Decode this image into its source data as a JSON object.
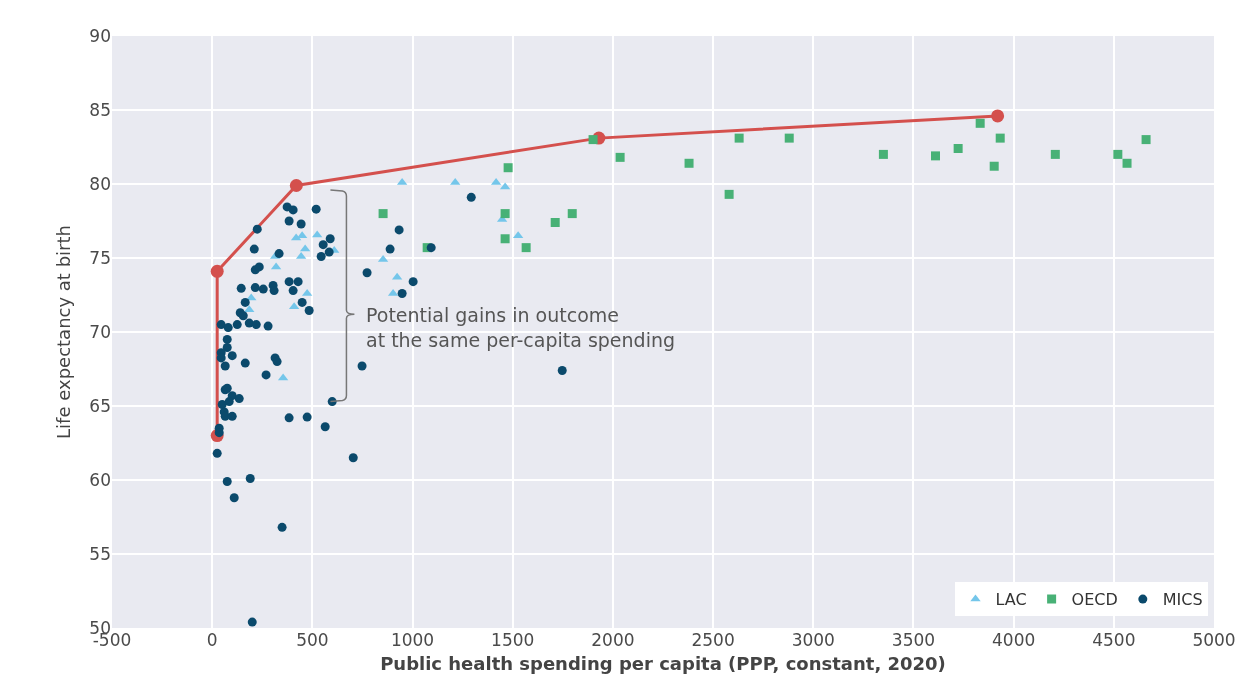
{
  "chart_data": {
    "type": "scatter",
    "xlabel": "Public health spending per capita (PPP, constant, 2020)",
    "ylabel": "Life expectancy at birth",
    "xlim": [
      -500,
      5000
    ],
    "xticks": [
      -500,
      0,
      500,
      1000,
      1500,
      2000,
      2500,
      3000,
      3500,
      4000,
      4500,
      5000
    ],
    "ylim": [
      50,
      90
    ],
    "yticks": [
      50,
      55,
      60,
      65,
      70,
      75,
      80,
      85,
      90
    ],
    "grid": true,
    "legend": "bottom right",
    "annotations": [
      "Potential gains in outcome\nat the same per-capita spending"
    ],
    "series": [
      {
        "name": "LAC",
        "color": "#74c6ea",
        "marker": "triangle",
        "x": [
          948,
          853,
          923,
          903,
          1213,
          1417,
          1462,
          1447,
          1527,
          419,
          449,
          524,
          464,
          444,
          609,
          314,
          319,
          195,
          185,
          474,
          409,
          354
        ],
        "values": [
          80.1,
          74.9,
          73.7,
          72.6,
          80.1,
          80.1,
          79.8,
          77.6,
          76.5,
          76.35,
          76.5,
          76.55,
          75.6,
          75.1,
          75.5,
          75.1,
          74.4,
          72.3,
          71.5,
          72.6,
          71.7,
          66.9
        ]
      },
      {
        "name": "OECD",
        "color": "#48b176",
        "marker": "square",
        "x": [
          853,
          1073,
          1477,
          1462,
          1462,
          1567,
          1712,
          1797,
          1901,
          2036,
          2380,
          2580,
          2630,
          2880,
          3350,
          3610,
          3723,
          3833,
          3933,
          3903,
          4208,
          4520,
          4566,
          4661
        ],
        "values": [
          78.0,
          75.7,
          81.1,
          78.0,
          76.3,
          75.7,
          77.4,
          78.0,
          83.0,
          81.8,
          81.4,
          79.3,
          83.1,
          83.1,
          82.0,
          81.9,
          82.4,
          84.1,
          83.1,
          81.2,
          82.0,
          82.0,
          81.4,
          83.0
        ]
      },
      {
        "name": "MICS",
        "color": "#0b4a6c",
        "marker": "circle",
        "x": [
          1293,
          1093,
          933,
          888,
          773,
          1003,
          948,
          748,
          1747,
          374,
          404,
          519,
          384,
          444,
          225,
          210,
          334,
          554,
          589,
          584,
          544,
          215,
          235,
          145,
          215,
          255,
          304,
          309,
          384,
          429,
          404,
          449,
          484,
          165,
          140,
          155,
          185,
          220,
          279,
          125,
          45,
          80,
          75,
          75,
          45,
          45,
          100,
          65,
          165,
          314,
          324,
          269,
          65,
          75,
          100,
          135,
          50,
          85,
          60,
          65,
          100,
          35,
          35,
          25,
          384,
          474,
          564,
          599,
          704,
          75,
          190,
          110,
          349,
          200
        ],
        "values": [
          79.1,
          75.7,
          76.9,
          75.6,
          74.0,
          73.4,
          72.6,
          67.7,
          67.4,
          78.45,
          78.25,
          78.3,
          77.5,
          77.3,
          76.95,
          75.6,
          75.3,
          75.9,
          76.3,
          75.4,
          75.1,
          74.2,
          74.4,
          72.95,
          73.0,
          72.9,
          73.15,
          72.8,
          73.4,
          73.4,
          72.8,
          72.0,
          71.45,
          72.0,
          71.3,
          71.1,
          70.6,
          70.5,
          70.4,
          70.5,
          70.5,
          70.3,
          69.5,
          68.95,
          68.6,
          68.25,
          68.4,
          67.7,
          67.9,
          68.25,
          68.0,
          67.1,
          66.1,
          66.2,
          65.7,
          65.5,
          65.1,
          65.3,
          64.6,
          64.3,
          64.3,
          63.5,
          63.2,
          61.8,
          64.2,
          64.25,
          63.6,
          65.3,
          61.5,
          59.9,
          60.1,
          58.8,
          56.8,
          50.4
        ]
      },
      {
        "type": "line",
        "color": "#d4504d",
        "marker": "circle",
        "x": [
          25,
          25,
          420,
          1930,
          3920
        ],
        "values": [
          63.0,
          74.1,
          79.9,
          83.1,
          84.6
        ]
      }
    ]
  }
}
